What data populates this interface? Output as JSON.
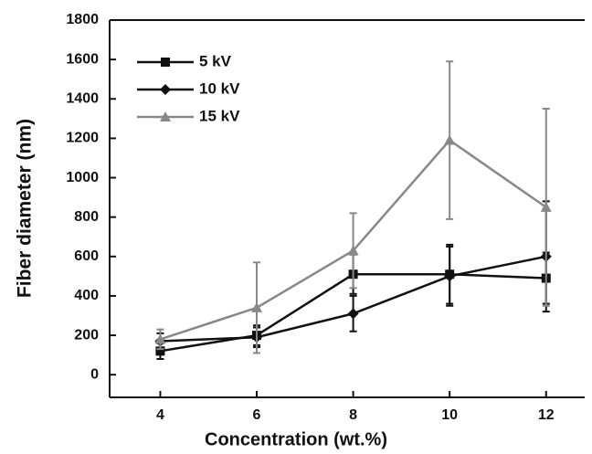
{
  "chart_data": {
    "type": "line",
    "x_label": "Concentration (wt.%)",
    "y_label": "Fiber diameter (nm)",
    "x": [
      4,
      6,
      8,
      10,
      12
    ],
    "series": [
      {
        "name": "5 kV",
        "color": "#111111",
        "marker": "square",
        "values": [
          120,
          200,
          510,
          510,
          490
        ],
        "errors": [
          40,
          50,
          100,
          150,
          130
        ]
      },
      {
        "name": "10 kV",
        "color": "#111111",
        "marker": "diamond",
        "values": [
          170,
          190,
          310,
          500,
          600
        ],
        "errors": [
          40,
          50,
          90,
          150,
          280
        ]
      },
      {
        "name": "15 kV",
        "color": "#888888",
        "marker": "triangle",
        "values": [
          180,
          340,
          630,
          1190,
          850
        ],
        "errors": [
          50,
          230,
          190,
          400,
          500
        ]
      }
    ],
    "xlim": [
      2.95,
      12.8
    ],
    "xticks": [
      4,
      6,
      8,
      10,
      12
    ],
    "ylim": [
      -115,
      1800
    ],
    "yticks": [
      0,
      200,
      400,
      600,
      800,
      1000,
      1200,
      1400,
      1600,
      1800
    ],
    "legend": "upper left"
  }
}
